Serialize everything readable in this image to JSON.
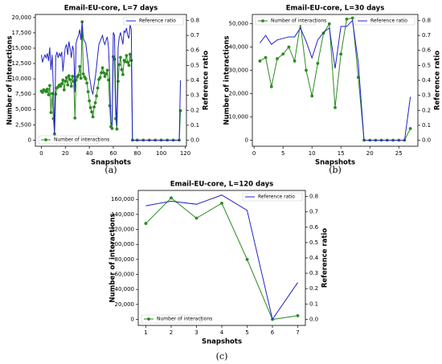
{
  "chart_data": [
    {
      "type": "line",
      "title": "Email-EU-core, L=7 days",
      "caption": "(a)",
      "xlabel": "Snapshots",
      "ylabel": "Number of interactions",
      "y2label": "Reference ratio",
      "x": [
        0,
        1,
        2,
        3,
        4,
        5,
        6,
        7,
        8,
        9,
        10,
        11,
        12,
        13,
        14,
        15,
        16,
        17,
        18,
        19,
        20,
        21,
        22,
        23,
        24,
        25,
        26,
        27,
        28,
        29,
        30,
        31,
        32,
        33,
        34,
        35,
        36,
        37,
        38,
        39,
        40,
        41,
        42,
        43,
        44,
        45,
        46,
        47,
        48,
        49,
        50,
        51,
        52,
        53,
        54,
        55,
        56,
        57,
        58,
        59,
        60,
        61,
        62,
        63,
        64,
        65,
        66,
        67,
        68,
        69,
        70,
        71,
        72,
        73,
        74,
        75,
        76,
        80,
        85,
        90,
        95,
        100,
        105,
        110,
        115,
        116
      ],
      "xlim": [
        -5,
        121
      ],
      "xticks": [
        0,
        20,
        40,
        60,
        80,
        100,
        120
      ],
      "ylim": [
        -1000,
        20500
      ],
      "yticks": [
        0,
        {
          "value": 2500,
          "label": "2,500"
        },
        {
          "value": 5000,
          "label": "5,000"
        },
        {
          "value": 7500,
          "label": "7,500"
        },
        {
          "value": 10000,
          "label": "10,000"
        },
        {
          "value": 12500,
          "label": "12,500"
        },
        {
          "value": 15000,
          "label": "15,000"
        },
        {
          "value": 17500,
          "label": "17,500"
        },
        {
          "value": 20000,
          "label": "20,000"
        }
      ],
      "y2lim": [
        -0.04,
        0.84
      ],
      "y2ticks": [
        {
          "value": 0,
          "label": "0.0"
        },
        0.1,
        0.2,
        0.3,
        0.4,
        0.5,
        0.6,
        0.7,
        0.8
      ],
      "series": [
        {
          "name": "Number of interactions",
          "color": "#2a8c1f",
          "markers": true,
          "legend_loc": "lower left",
          "values": [
            8000,
            7800,
            8200,
            8100,
            7900,
            8300,
            7400,
            8900,
            4500,
            7600,
            3500,
            1000,
            7500,
            8500,
            8700,
            9000,
            8800,
            9200,
            9800,
            8200,
            9600,
            10200,
            9000,
            10500,
            9900,
            8800,
            10400,
            9600,
            3600,
            9800,
            10300,
            10600,
            12000,
            10100,
            19300,
            10800,
            10300,
            10000,
            9300,
            7900,
            6400,
            5300,
            4600,
            3800,
            5400,
            6100,
            7200,
            8500,
            9900,
            10200,
            11000,
            11800,
            11000,
            10400,
            10800,
            11400,
            9800,
            5600,
            2200,
            1900,
            13600,
            13200,
            3500,
            1800,
            9600,
            12300,
            13500,
            11500,
            10700,
            13000,
            12800,
            13800,
            12700,
            12200,
            14000,
            13000,
            0,
            0,
            0,
            0,
            0,
            0,
            0,
            0,
            0,
            4800
          ]
        },
        {
          "name": "Reference ratio",
          "color": "#2222c8",
          "axis": "y2",
          "legend_loc": "upper right",
          "values": [
            0.57,
            0.52,
            0.55,
            0.57,
            0.55,
            0.58,
            0.53,
            0.62,
            0.47,
            0.57,
            0.35,
            0.04,
            0.56,
            0.59,
            0.55,
            0.58,
            0.56,
            0.59,
            0.46,
            0.55,
            0.62,
            0.64,
            0.57,
            0.66,
            0.61,
            0.55,
            0.63,
            0.6,
            0.32,
            0.65,
            0.68,
            0.7,
            0.74,
            0.67,
            0.79,
            0.68,
            0.66,
            0.65,
            0.58,
            0.52,
            0.43,
            0.38,
            0.33,
            0.31,
            0.37,
            0.42,
            0.49,
            0.57,
            0.64,
            0.66,
            0.68,
            0.7,
            0.66,
            0.64,
            0.67,
            0.69,
            0.62,
            0.42,
            0.12,
            0.1,
            0.72,
            0.7,
            0.25,
            0.1,
            0.62,
            0.69,
            0.72,
            0.68,
            0.64,
            0.73,
            0.72,
            0.75,
            0.7,
            0.68,
            0.77,
            0.74,
            0,
            0,
            0,
            0,
            0,
            0,
            0,
            0,
            0,
            0.4
          ]
        }
      ]
    },
    {
      "type": "line",
      "title": "Email-EU-core, L=30 days",
      "caption": "(b)",
      "xlabel": "Snapshots",
      "ylabel": "Number of interactions",
      "y2label": "Reference ratio",
      "x": [
        1,
        2,
        3,
        4,
        5,
        6,
        7,
        8,
        9,
        10,
        11,
        12,
        13,
        14,
        15,
        16,
        17,
        18,
        19,
        20,
        21,
        22,
        23,
        24,
        25,
        26,
        27
      ],
      "xlim": [
        -0.3,
        28.3
      ],
      "xticks": [
        0,
        5,
        10,
        15,
        20,
        25
      ],
      "ylim": [
        -2600,
        54000
      ],
      "yticks": [
        0,
        {
          "value": 10000,
          "label": "10,000"
        },
        {
          "value": 20000,
          "label": "20,000"
        },
        {
          "value": 30000,
          "label": "30,000"
        },
        {
          "value": 40000,
          "label": "40,000"
        },
        {
          "value": 50000,
          "label": "50,000"
        }
      ],
      "y2lim": [
        -0.04,
        0.84
      ],
      "y2ticks": [
        {
          "value": 0,
          "label": "0.0"
        },
        0.1,
        0.2,
        0.3,
        0.4,
        0.5,
        0.6,
        0.7,
        0.8
      ],
      "series": [
        {
          "name": "Number of interactions",
          "color": "#2a8c1f",
          "markers": true,
          "legend_loc": "upper left",
          "values": [
            34000,
            35500,
            23000,
            35000,
            37000,
            40000,
            34000,
            50000,
            30000,
            19000,
            33000,
            46000,
            50000,
            14000,
            37000,
            52000,
            52500,
            27000,
            0,
            0,
            0,
            0,
            0,
            0,
            0,
            0,
            5000
          ]
        },
        {
          "name": "Reference ratio",
          "color": "#2222c8",
          "axis": "y2",
          "legend_loc": "upper right",
          "values": [
            0.65,
            0.7,
            0.64,
            0.67,
            0.68,
            0.69,
            0.69,
            0.75,
            0.66,
            0.55,
            0.67,
            0.72,
            0.75,
            0.48,
            0.76,
            0.76,
            0.8,
            0.52,
            0,
            0,
            0,
            0,
            0,
            0,
            0,
            0,
            0.29
          ]
        }
      ]
    },
    {
      "type": "line",
      "title": "Email-EU-core, L=120 days",
      "caption": "(c)",
      "xlabel": "Snapshots",
      "ylabel": "Number of interactions",
      "y2label": "Reference ratio",
      "x": [
        1,
        2,
        3,
        4,
        5,
        6,
        7
      ],
      "xlim": [
        0.7,
        7.3
      ],
      "xticks": [
        1,
        2,
        3,
        4,
        5,
        6,
        7
      ],
      "ylim": [
        -8000,
        172000
      ],
      "yticks": [
        0,
        {
          "value": 20000,
          "label": "20,000"
        },
        {
          "value": 40000,
          "label": "40,000"
        },
        {
          "value": 60000,
          "label": "60,000"
        },
        {
          "value": 80000,
          "label": "80,000"
        },
        {
          "value": 100000,
          "label": "100,000"
        },
        {
          "value": 120000,
          "label": "120,000"
        },
        {
          "value": 140000,
          "label": "140,000"
        },
        {
          "value": 160000,
          "label": "160,000"
        }
      ],
      "y2lim": [
        -0.04,
        0.84
      ],
      "y2ticks": [
        {
          "value": 0,
          "label": "0.0"
        },
        0.1,
        0.2,
        0.3,
        0.4,
        0.5,
        0.6,
        0.7,
        0.8
      ],
      "series": [
        {
          "name": "Number of interactions",
          "color": "#2a8c1f",
          "markers": true,
          "legend_loc": "lower left",
          "values": [
            128000,
            162000,
            135000,
            155000,
            80000,
            0,
            5000
          ]
        },
        {
          "name": "Reference ratio",
          "color": "#2222c8",
          "axis": "y2",
          "legend_loc": "upper right",
          "values": [
            0.74,
            0.77,
            0.75,
            0.81,
            0.71,
            0,
            0.24
          ]
        }
      ]
    }
  ]
}
